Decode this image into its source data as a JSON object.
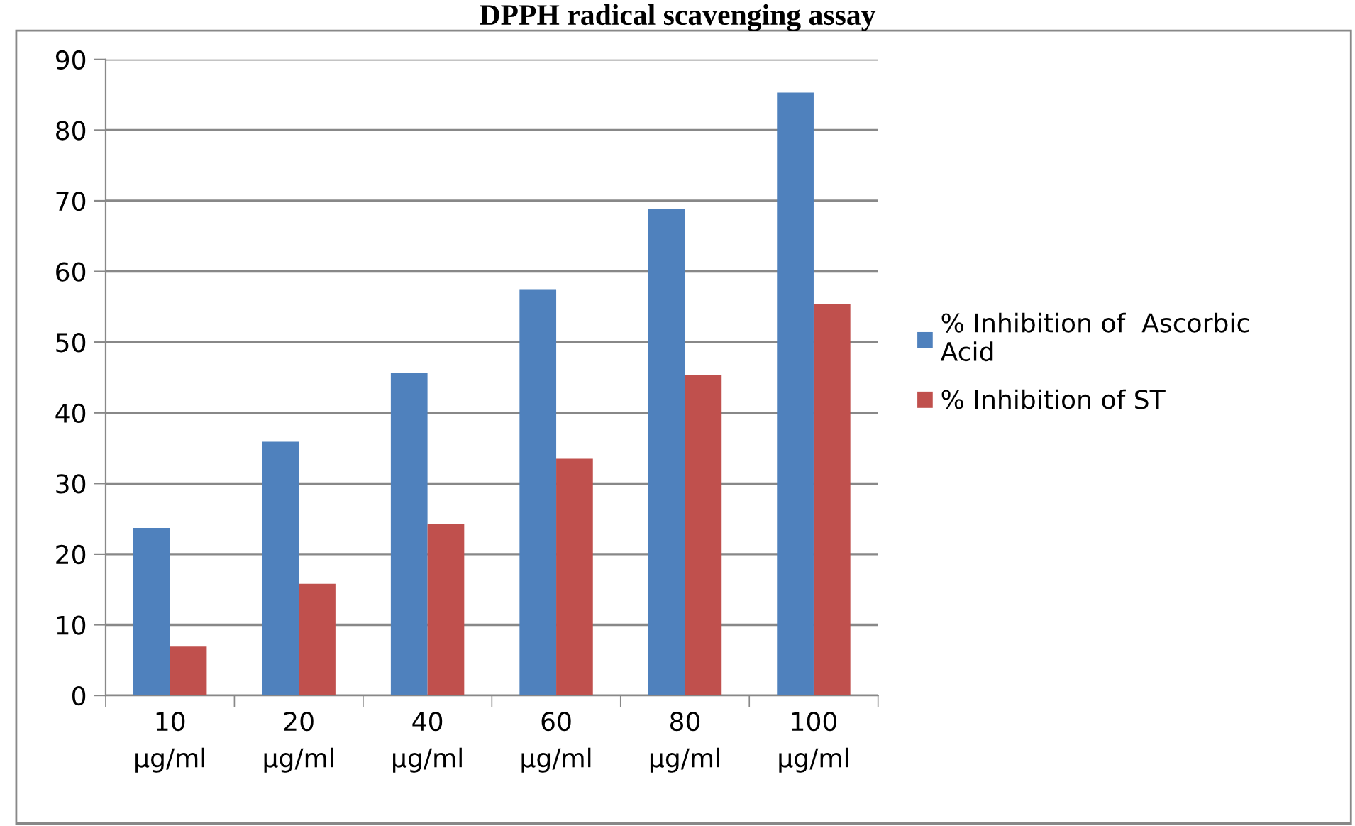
{
  "chart_data": {
    "type": "bar",
    "title": "DPPH radical scavenging assay",
    "categories": [
      "10\nµg/ml",
      "20\nµg/ml",
      "40\nµg/ml",
      "60\nµg/ml",
      "80\nµg/ml",
      "100\nµg/ml"
    ],
    "series": [
      {
        "name": "% Inhibition of  Ascorbic\nAcid",
        "color": "#4f81bd",
        "values": [
          23.7,
          35.9,
          45.6,
          57.5,
          68.9,
          85.3
        ]
      },
      {
        "name": "% Inhibition of ST",
        "color": "#c0504d",
        "values": [
          6.9,
          15.8,
          24.3,
          33.5,
          45.4,
          55.4
        ]
      }
    ],
    "ylim": [
      0,
      90
    ],
    "yticks": [
      0,
      10,
      20,
      30,
      40,
      50,
      60,
      70,
      80,
      90
    ],
    "grid": "y",
    "legend": "right"
  }
}
